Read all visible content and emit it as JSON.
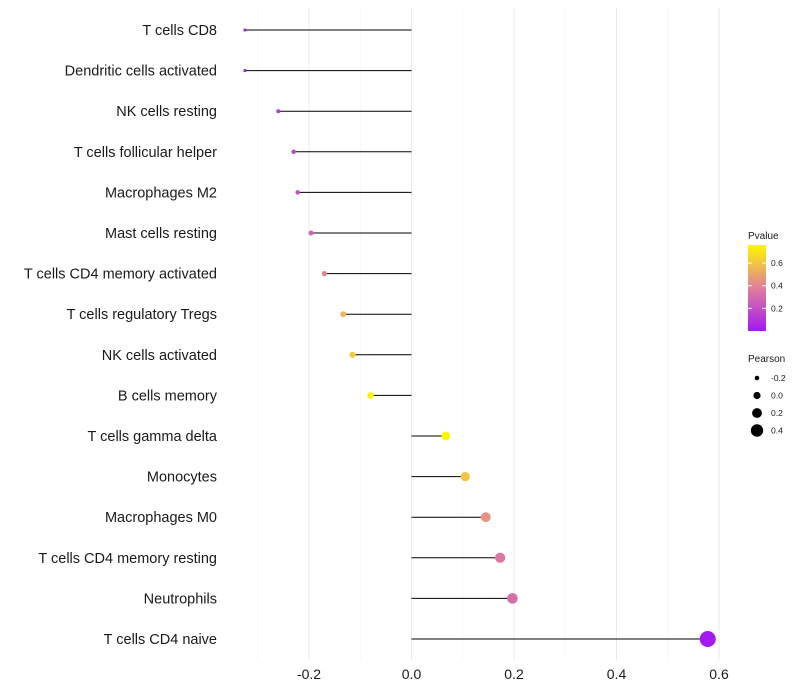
{
  "chart_data": {
    "type": "lollipop",
    "categories": [
      "T cells CD8",
      "Dendritic cells activated",
      "NK cells resting",
      "T cells follicular helper",
      "Macrophages M2",
      "Mast cells resting",
      "T cells CD4 memory activated",
      "T cells regulatory  Tregs ",
      "NK cells activated",
      "B cells memory",
      "T cells gamma delta",
      "Monocytes",
      "Macrophages M0",
      "T cells CD4 memory resting",
      "Neutrophils",
      "T cells CD4 naive"
    ],
    "pearson": [
      -0.325,
      -0.325,
      -0.26,
      -0.23,
      -0.222,
      -0.196,
      -0.17,
      -0.133,
      -0.115,
      -0.08,
      0.067,
      0.105,
      0.145,
      0.173,
      0.197,
      0.578
    ],
    "pvalue": [
      0.001,
      0.002,
      0.12,
      0.17,
      0.2,
      0.28,
      0.4,
      0.55,
      0.62,
      0.75,
      0.76,
      0.6,
      0.45,
      0.35,
      0.32,
      0.0005
    ],
    "xlim": [
      -0.3,
      0.6
    ],
    "x_ticks": [
      -0.2,
      0.0,
      0.2,
      0.4,
      0.6
    ],
    "x_tick_labels": [
      "-0.2",
      "0.0",
      "0.2",
      "0.4",
      "0.6"
    ],
    "xlabel": "",
    "ylabel": "",
    "grid": true,
    "legend": {
      "color": {
        "title": "Pvalue",
        "ticks": [
          0.2,
          0.4,
          0.6
        ],
        "tick_labels": [
          "0.2",
          "0.4",
          "0.6"
        ],
        "range": [
          0.0,
          0.76
        ],
        "low_color": "#a21af0",
        "mid_color": "#df7f9c",
        "high_color": "#fff700"
      },
      "size": {
        "title": "Pearson",
        "values": [
          -0.2,
          0.0,
          0.2,
          0.4
        ],
        "labels": [
          "-0.2",
          "0.0",
          "0.2",
          "0.4"
        ]
      },
      "placement": "right"
    },
    "stem_color": "#000000",
    "grid_color": "#ebebeb"
  }
}
